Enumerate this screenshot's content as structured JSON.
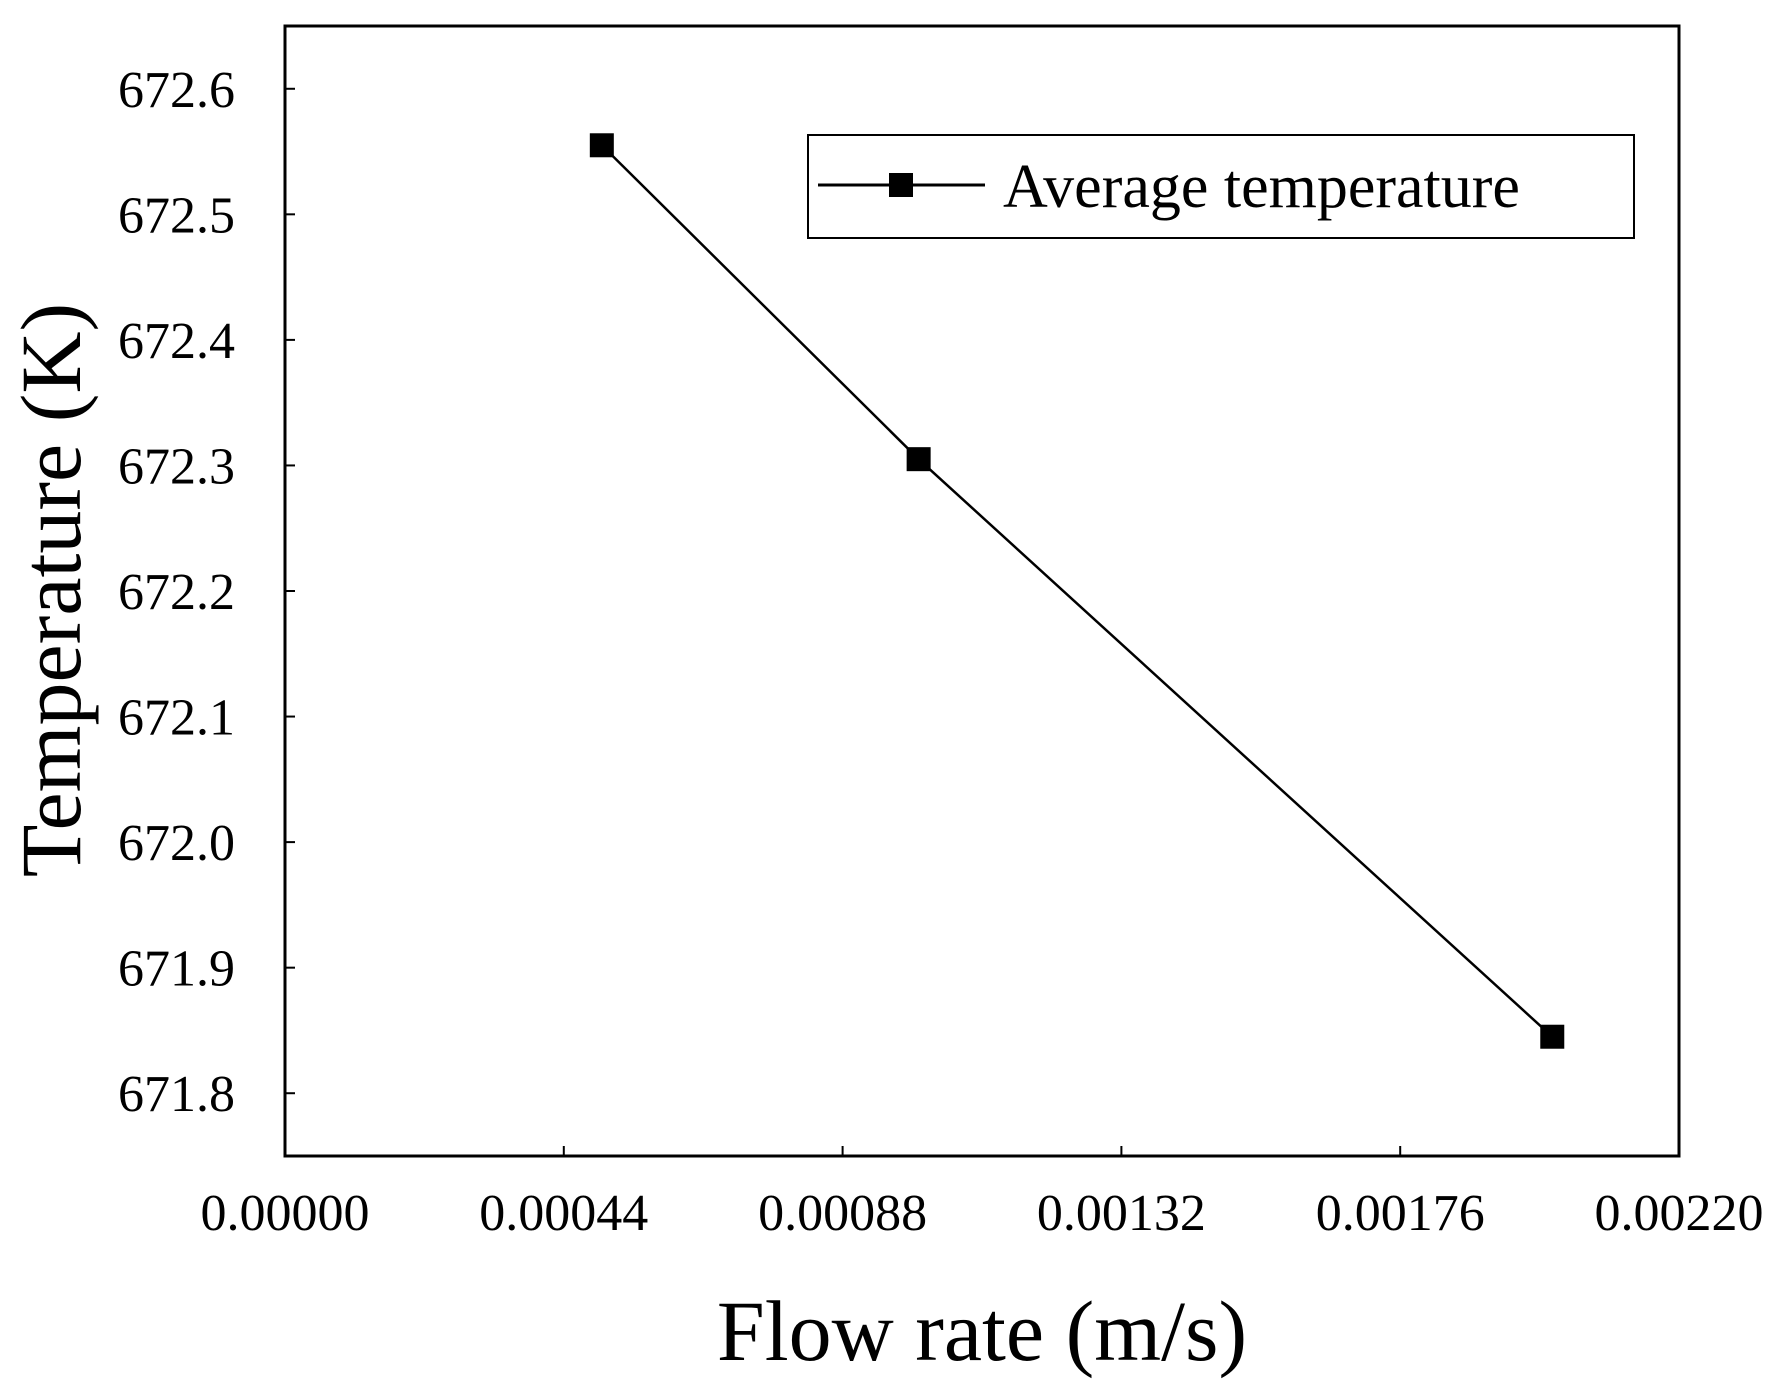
{
  "chart_data": {
    "type": "line",
    "title": "",
    "xlabel": "Flow rate (m/s)",
    "ylabel": "Temperature (K)",
    "xlim": [
      0.0,
      0.0022
    ],
    "ylim": [
      671.75,
      672.65
    ],
    "x_ticks": [
      0.0,
      0.00044,
      0.00088,
      0.00132,
      0.00176,
      0.0022
    ],
    "x_tick_labels": [
      "0.00000",
      "0.00044",
      "0.00088",
      "0.00132",
      "0.00176",
      "0.00220"
    ],
    "y_ticks": [
      671.8,
      671.9,
      672.0,
      672.1,
      672.2,
      672.3,
      672.4,
      672.5,
      672.6
    ],
    "y_tick_labels": [
      "671.8",
      "671.9",
      "672.0",
      "672.1",
      "672.2",
      "672.3",
      "672.4",
      "672.5",
      "672.6"
    ],
    "grid": false,
    "legend_position": "top-right",
    "series": [
      {
        "name": "Average temperature",
        "marker": "square",
        "color": "#000000",
        "x": [
          0.0005,
          0.001,
          0.002
        ],
        "y": [
          672.555,
          672.305,
          671.845
        ]
      }
    ]
  }
}
